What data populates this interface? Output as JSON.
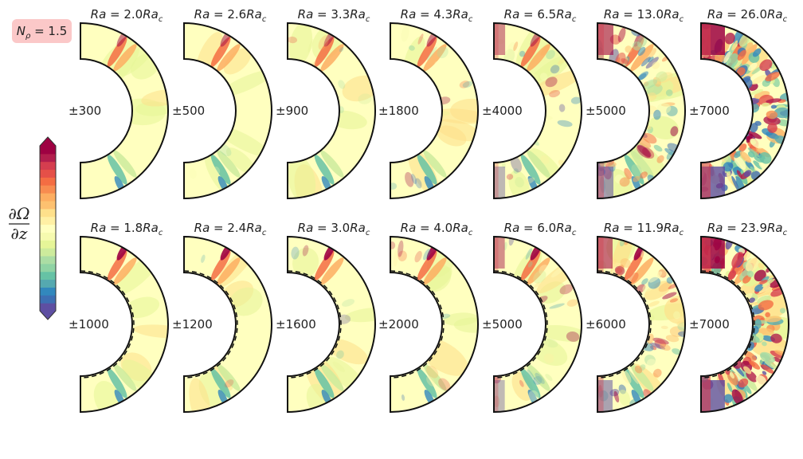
{
  "figure": {
    "badge": "N_ρ = 1.5",
    "colorbar_numerator": "∂Ω",
    "colorbar_denominator": "∂z"
  },
  "colors": {
    "badge_bg": "#fbc8c8",
    "colorbar": [
      "#5e4fa2",
      "#3d6fb3",
      "#3288bd",
      "#55a9b0",
      "#66c2a5",
      "#8fd3a4",
      "#abdda4",
      "#cdeb9c",
      "#e6f598",
      "#f6faaf",
      "#ffffbf",
      "#fff0a4",
      "#fee08b",
      "#fdc170",
      "#fdae61",
      "#f88c50",
      "#f46d43",
      "#e55048",
      "#d53e4f",
      "#b21e4d",
      "#9e0142"
    ]
  },
  "chart_data": {
    "type": "heatmap",
    "description_of_panels": "meridional slices of dOmega/dz; symmetric color range per panel",
    "rows": [
      {
        "stratification_label": "N_ρ = 1.5",
        "has_dashed_boundary": false,
        "panels": [
          {
            "ra_multiplier": "2.0",
            "title": "Ra = 2.0Ra_c",
            "range": "±300"
          },
          {
            "ra_multiplier": "2.6",
            "title": "Ra = 2.6Ra_c",
            "range": "±500"
          },
          {
            "ra_multiplier": "3.3",
            "title": "Ra = 3.3Ra_c",
            "range": "±900"
          },
          {
            "ra_multiplier": "4.3",
            "title": "Ra = 4.3Ra_c",
            "range": "±1800"
          },
          {
            "ra_multiplier": "6.5",
            "title": "Ra = 6.5Ra_c",
            "range": "±4000"
          },
          {
            "ra_multiplier": "13.0",
            "title": "Ra = 13.0Ra_c",
            "range": "±5000"
          },
          {
            "ra_multiplier": "26.0",
            "title": "Ra = 26.0Ra_c",
            "range": "±7000"
          }
        ]
      },
      {
        "has_dashed_boundary": true,
        "panels": [
          {
            "ra_multiplier": "1.8",
            "title": "Ra = 1.8Ra_c",
            "range": "±1000"
          },
          {
            "ra_multiplier": "2.4",
            "title": "Ra = 2.4Ra_c",
            "range": "±1200"
          },
          {
            "ra_multiplier": "3.0",
            "title": "Ra = 3.0Ra_c",
            "range": "±1600"
          },
          {
            "ra_multiplier": "4.0",
            "title": "Ra = 4.0Ra_c",
            "range": "±2000"
          },
          {
            "ra_multiplier": "6.0",
            "title": "Ra = 6.0Ra_c",
            "range": "±5000"
          },
          {
            "ra_multiplier": "11.9",
            "title": "Ra = 11.9Ra_c",
            "range": "±6000"
          },
          {
            "ra_multiplier": "23.9",
            "title": "Ra = 23.9Ra_c",
            "range": "±7000"
          }
        ]
      }
    ],
    "colorbar": {
      "symmetric": true,
      "extend": "both",
      "levels": 21
    }
  }
}
